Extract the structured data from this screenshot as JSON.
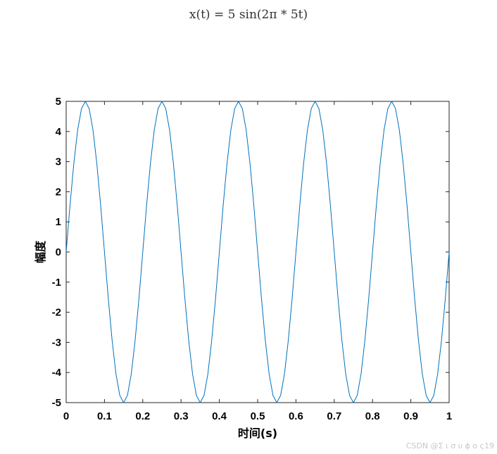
{
  "watermark": "CSDN @Σ ι σ υ ϕ ο ς19",
  "chart_data": {
    "type": "line",
    "title": "x(t) = 5 sin(2π * 5t)",
    "xlabel": "时间(s)",
    "ylabel": "幅度",
    "xlim": [
      0,
      1
    ],
    "ylim": [
      -5,
      5
    ],
    "xticks": [
      "0",
      "0.1",
      "0.2",
      "0.3",
      "0.4",
      "0.5",
      "0.6",
      "0.7",
      "0.8",
      "0.9",
      "1"
    ],
    "yticks": [
      "5",
      "4",
      "3",
      "2",
      "1",
      "0",
      "-1",
      "-2",
      "-3",
      "-4",
      "-5"
    ],
    "grid": false,
    "legend": "none",
    "line_color": "#0072bd",
    "series": [
      {
        "x": [
          0,
          0.01,
          0.02,
          0.03,
          0.04,
          0.05,
          0.06,
          0.07,
          0.08,
          0.09,
          0.1,
          0.11,
          0.12,
          0.13,
          0.14,
          0.15,
          0.16,
          0.17,
          0.18,
          0.19,
          0.2,
          0.21,
          0.22,
          0.23,
          0.24,
          0.25,
          0.26,
          0.27,
          0.28,
          0.29,
          0.3,
          0.31,
          0.32,
          0.33,
          0.34,
          0.35,
          0.36,
          0.37,
          0.38,
          0.39,
          0.4,
          0.41,
          0.42,
          0.43,
          0.44,
          0.45,
          0.46,
          0.47,
          0.48,
          0.49,
          0.5,
          0.51,
          0.52,
          0.53,
          0.54,
          0.55,
          0.56,
          0.57,
          0.58,
          0.59,
          0.6,
          0.61,
          0.62,
          0.63,
          0.64,
          0.65,
          0.66,
          0.67,
          0.68,
          0.69,
          0.7,
          0.71,
          0.72,
          0.73,
          0.74,
          0.75,
          0.76,
          0.77,
          0.78,
          0.79,
          0.8,
          0.81,
          0.82,
          0.83,
          0.84,
          0.85,
          0.86,
          0.87,
          0.88,
          0.89,
          0.9,
          0.91,
          0.92,
          0.93,
          0.94,
          0.95,
          0.96,
          0.97,
          0.98,
          0.99,
          1.0
        ],
        "values": [
          0,
          1.55,
          2.94,
          4.05,
          4.76,
          5,
          4.76,
          4.05,
          2.94,
          1.55,
          0,
          -1.55,
          -2.94,
          -4.05,
          -4.76,
          -5,
          -4.76,
          -4.05,
          -2.94,
          -1.55,
          0,
          1.55,
          2.94,
          4.05,
          4.76,
          5,
          4.76,
          4.05,
          2.94,
          1.55,
          0,
          -1.55,
          -2.94,
          -4.05,
          -4.76,
          -5,
          -4.76,
          -4.05,
          -2.94,
          -1.55,
          0,
          1.55,
          2.94,
          4.05,
          4.76,
          5,
          4.76,
          4.05,
          2.94,
          1.55,
          0,
          -1.55,
          -2.94,
          -4.05,
          -4.76,
          -5,
          -4.76,
          -4.05,
          -2.94,
          -1.55,
          0,
          1.55,
          2.94,
          4.05,
          4.76,
          5,
          4.76,
          4.05,
          2.94,
          1.55,
          0,
          -1.55,
          -2.94,
          -4.05,
          -4.76,
          -5,
          -4.76,
          -4.05,
          -2.94,
          -1.55,
          0,
          1.55,
          2.94,
          4.05,
          4.76,
          5,
          4.76,
          4.05,
          2.94,
          1.55,
          0,
          -1.55,
          -2.94,
          -4.05,
          -4.76,
          -5,
          -4.76,
          -4.05,
          -2.94,
          -1.55,
          0
        ]
      }
    ]
  }
}
